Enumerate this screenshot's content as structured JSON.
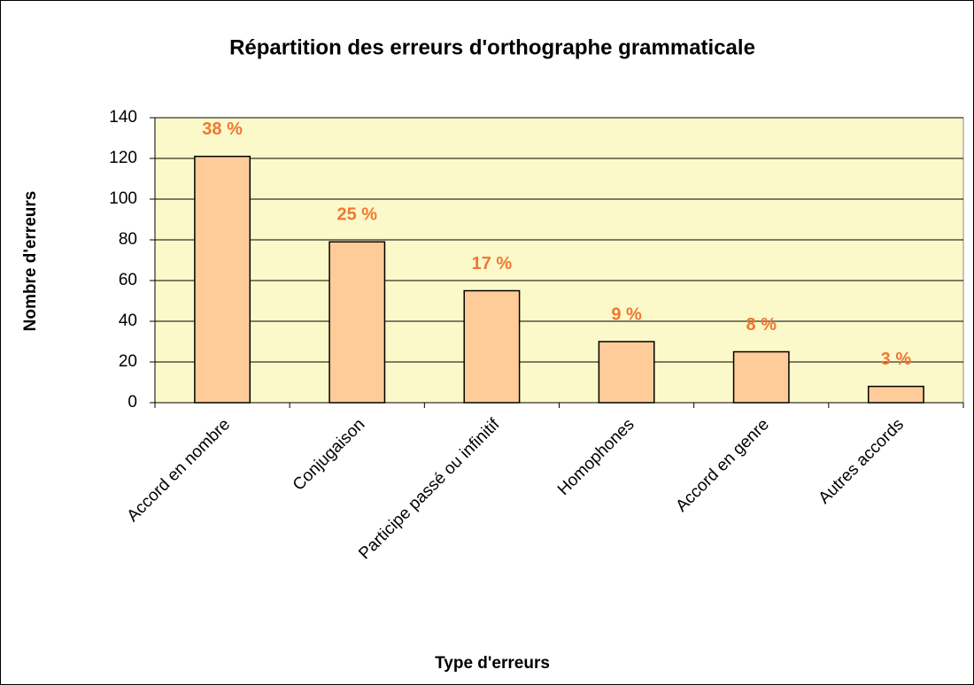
{
  "chart_data": {
    "type": "bar",
    "title": "Répartition des erreurs d'orthographe grammaticale",
    "x_label": "Type d'erreurs",
    "y_label": "Nombre d'erreurs",
    "categories": [
      "Accord en nombre",
      "Conjugaison",
      "Participe passé ou infinitif",
      "Homophones",
      "Accord en genre",
      "Autres accords"
    ],
    "values": [
      121,
      79,
      55,
      30,
      25,
      8
    ],
    "data_labels": [
      "38 %",
      "25 %",
      "17 %",
      "9 %",
      "8 %",
      "3 %"
    ],
    "color": "#ffcc99",
    "label_color": "#f07832",
    "plot_background": "#fbf9c9",
    "ylim": [
      0,
      140
    ],
    "yticks": [
      0,
      20,
      40,
      60,
      80,
      100,
      120,
      140
    ],
    "grid": true
  }
}
